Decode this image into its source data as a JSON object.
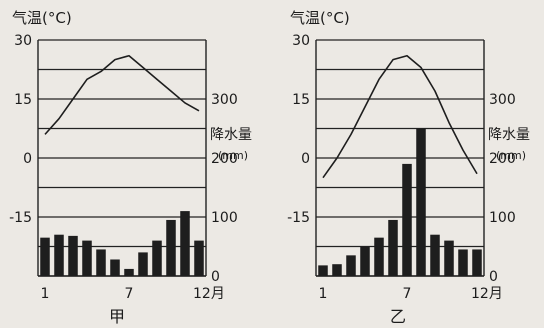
{
  "chart_data": [
    {
      "type": "climograph",
      "title": "",
      "caption": "甲",
      "temperature_axis_label": "气温(°C)",
      "precipitation_axis_label": "降水量",
      "precipitation_unit_label": "(mm)",
      "x_ticks": [
        "1",
        "7",
        "12月"
      ],
      "temperature_ticks": [
        "30",
        "15",
        "0",
        "-15"
      ],
      "precipitation_ticks": [
        "300",
        "200",
        "100",
        "0"
      ],
      "temperature_range": [
        -30,
        30
      ],
      "precipitation_range": [
        0,
        400
      ],
      "months": [
        1,
        2,
        3,
        4,
        5,
        6,
        7,
        8,
        9,
        10,
        11,
        12
      ],
      "temperature": [
        6,
        10,
        15,
        20,
        22,
        25,
        26,
        23,
        20,
        17,
        14,
        12
      ],
      "precipitation": [
        65,
        70,
        68,
        60,
        45,
        28,
        12,
        40,
        60,
        95,
        110,
        60
      ]
    },
    {
      "type": "climograph",
      "title": "",
      "caption": "乙",
      "temperature_axis_label": "气温(°C)",
      "precipitation_axis_label": "降水量",
      "precipitation_unit_label": "(mm)",
      "x_ticks": [
        "1",
        "7",
        "12月"
      ],
      "temperature_ticks": [
        "30",
        "15",
        "0",
        "-15"
      ],
      "precipitation_ticks": [
        "300",
        "200",
        "100",
        "0"
      ],
      "temperature_range": [
        -30,
        30
      ],
      "precipitation_range": [
        0,
        400
      ],
      "months": [
        1,
        2,
        3,
        4,
        5,
        6,
        7,
        8,
        9,
        10,
        11,
        12
      ],
      "temperature": [
        -5,
        0,
        6,
        13,
        20,
        25,
        26,
        23,
        17,
        9,
        2,
        -4
      ],
      "precipitation": [
        18,
        20,
        35,
        50,
        65,
        95,
        190,
        250,
        70,
        60,
        45,
        45
      ]
    }
  ]
}
